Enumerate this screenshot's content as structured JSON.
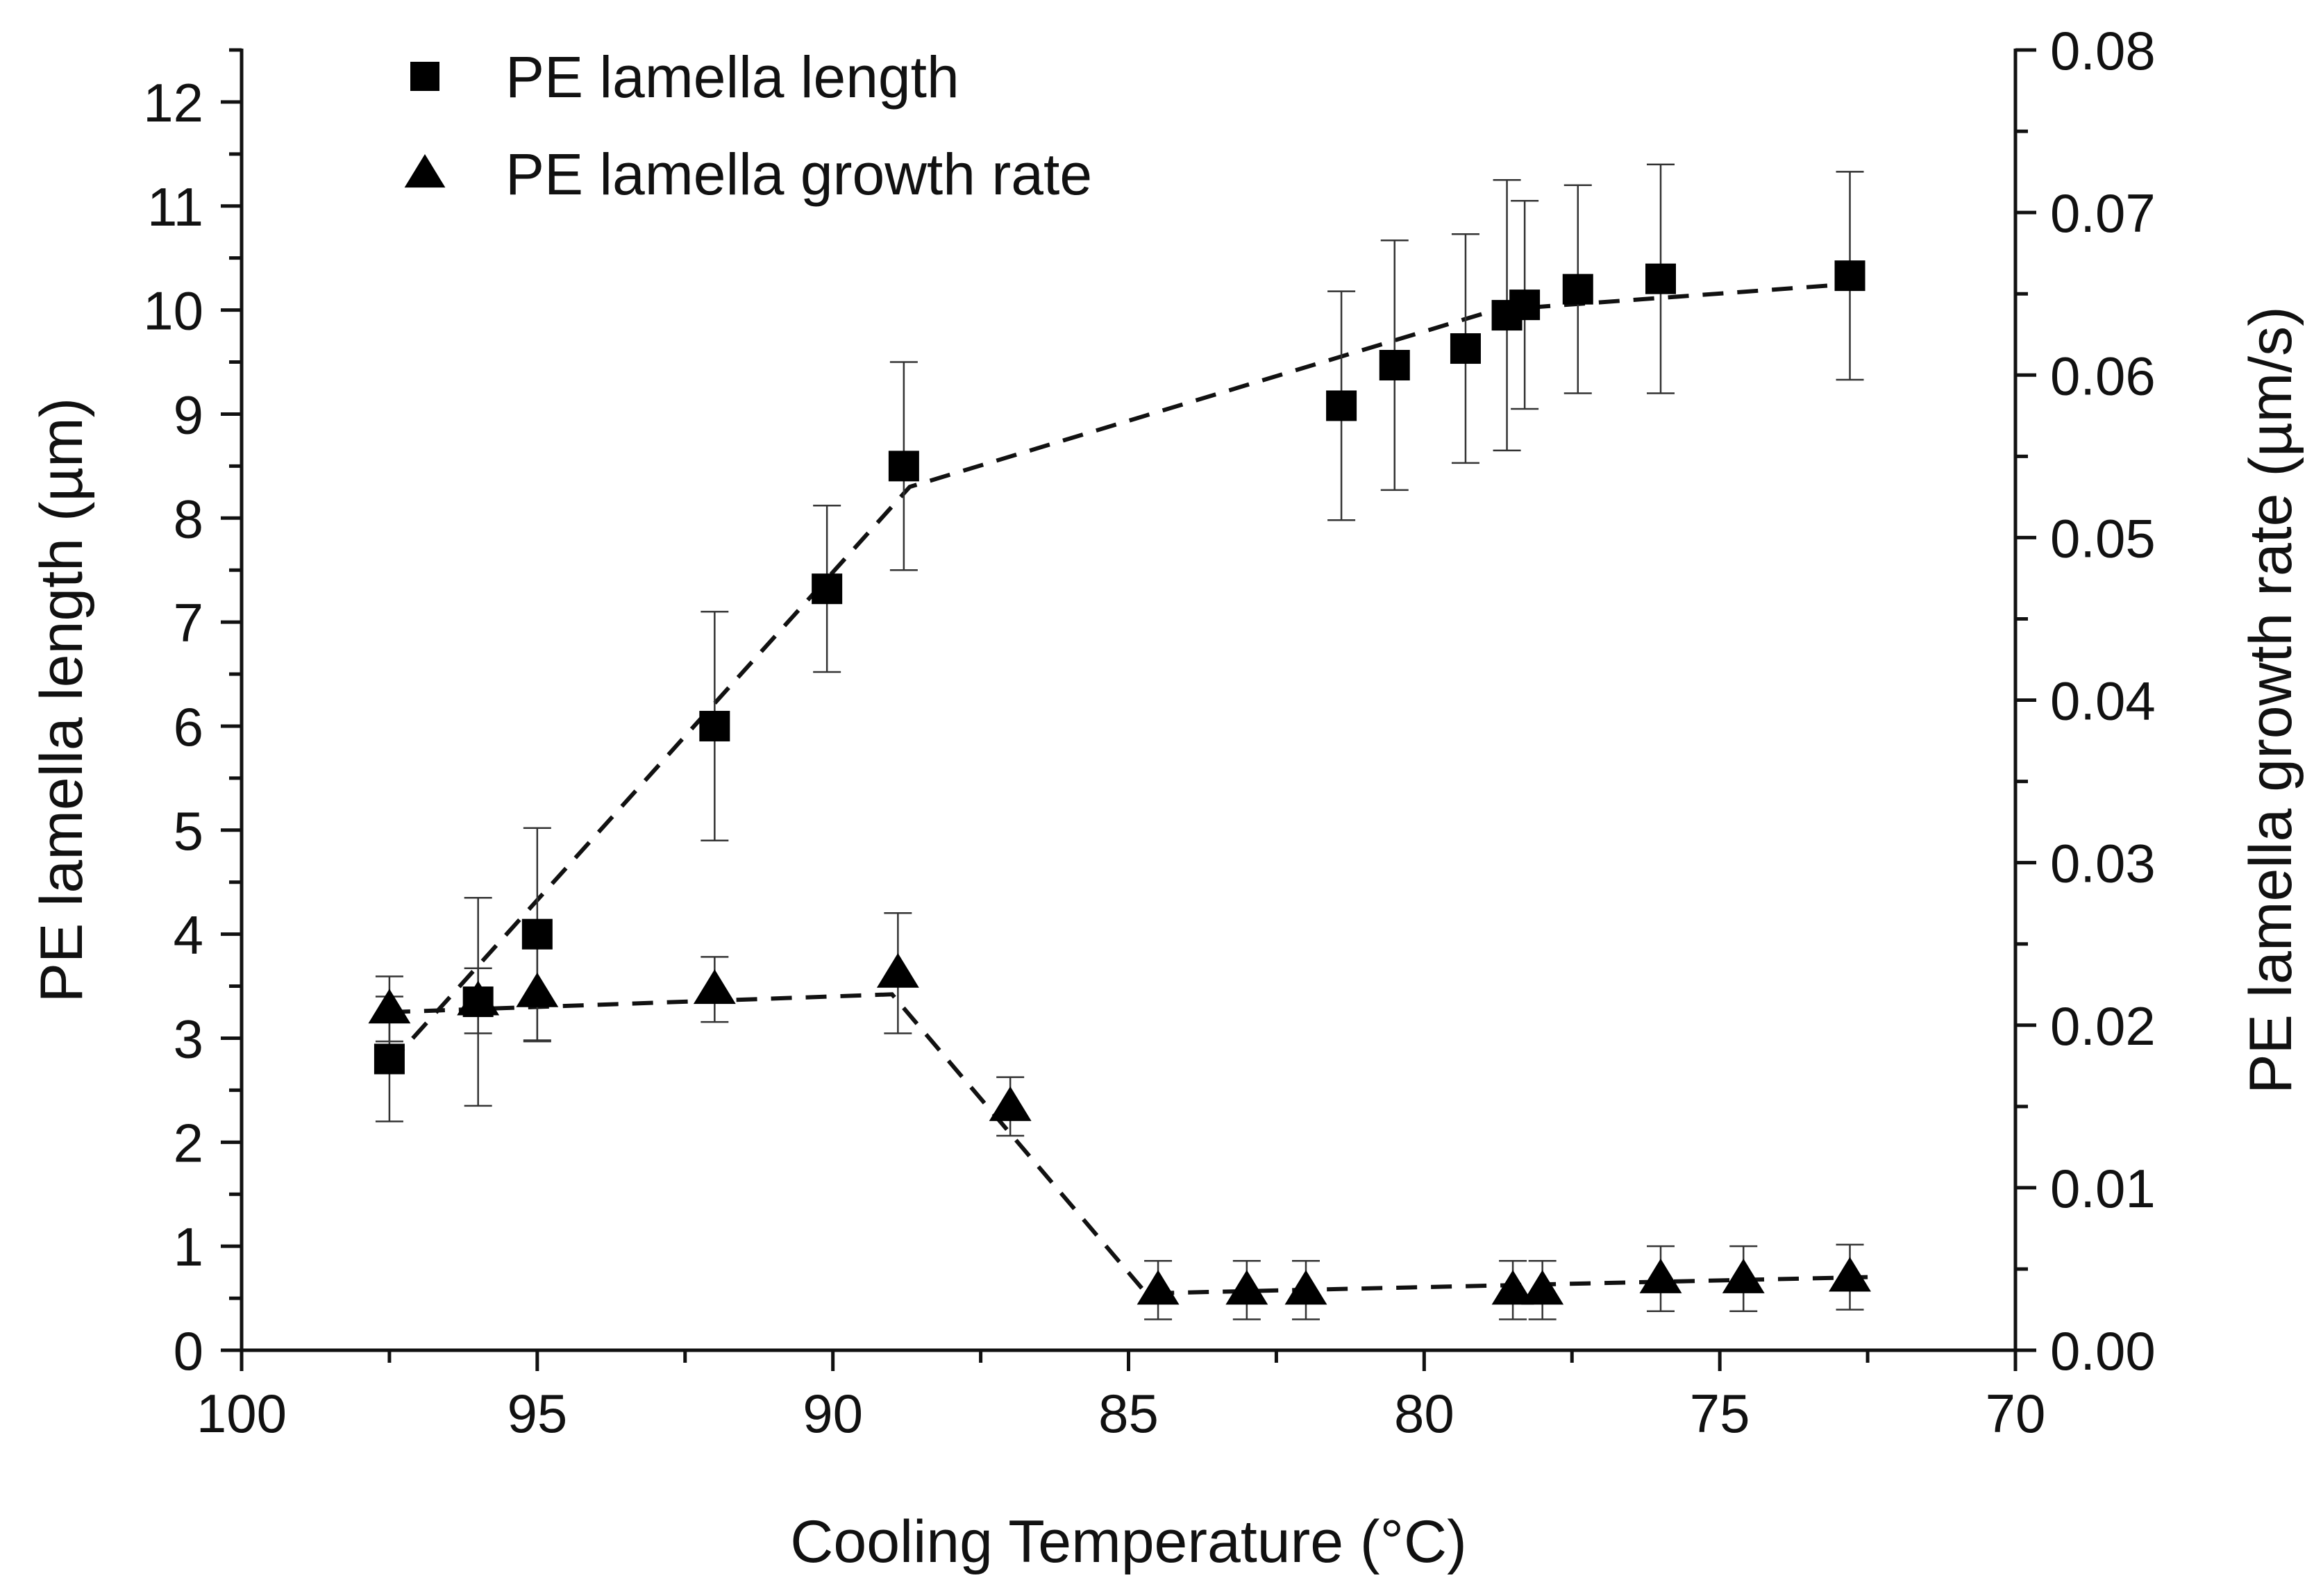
{
  "chart_data": {
    "type": "scatter",
    "xlabel": "Cooling Temperature (°C)",
    "ylabel": "PE lamella length (µm)",
    "y2label": "PE lamella growth rate (µm/s)",
    "xlim": [
      100,
      70
    ],
    "ylim": [
      0,
      12.5
    ],
    "y2lim": [
      0,
      0.08
    ],
    "xticks": [
      100,
      95,
      90,
      85,
      80,
      75,
      70
    ],
    "xtick_labels": [
      "100",
      "95",
      "90",
      "85",
      "80",
      "75",
      "70"
    ],
    "yticks": [
      0,
      1,
      2,
      3,
      4,
      5,
      6,
      7,
      8,
      9,
      10,
      11,
      12
    ],
    "ytick_labels": [
      "0",
      "1",
      "2",
      "3",
      "4",
      "5",
      "6",
      "7",
      "8",
      "9",
      "10",
      "11",
      "12"
    ],
    "y2ticks": [
      0,
      0.01,
      0.02,
      0.03,
      0.04,
      0.05,
      0.06,
      0.07,
      0.08
    ],
    "y2tick_labels": [
      "0.00",
      "0.01",
      "0.02",
      "0.03",
      "0.04",
      "0.05",
      "0.06",
      "0.07",
      "0.08"
    ],
    "legend_position": "top-left",
    "series": [
      {
        "name": "PE lamella length",
        "marker": "square",
        "axis": "left",
        "points": [
          {
            "x": 97.5,
            "y": 2.8,
            "err": 0.6
          },
          {
            "x": 96.0,
            "y": 3.35,
            "err": 1.0
          },
          {
            "x": 95.0,
            "y": 4.0,
            "err": 1.02
          },
          {
            "x": 92.0,
            "y": 6.0,
            "err": 1.1
          },
          {
            "x": 90.1,
            "y": 7.32,
            "err": 0.8
          },
          {
            "x": 88.8,
            "y": 8.5,
            "err": 1.0
          },
          {
            "x": 81.4,
            "y": 9.08,
            "err": 1.1
          },
          {
            "x": 80.5,
            "y": 9.47,
            "err": 1.2
          },
          {
            "x": 79.3,
            "y": 9.63,
            "err": 1.1
          },
          {
            "x": 78.6,
            "y": 9.95,
            "err": 1.3
          },
          {
            "x": 78.3,
            "y": 10.05,
            "err": 1.0
          },
          {
            "x": 77.4,
            "y": 10.2,
            "err": 1.0
          },
          {
            "x": 76.0,
            "y": 10.3,
            "err": 1.1
          },
          {
            "x": 72.8,
            "y": 10.33,
            "err": 1.0
          }
        ],
        "trend": [
          {
            "x": 97.5,
            "y": 2.75
          },
          {
            "x": 88.7,
            "y": 8.3
          },
          {
            "x": 78.8,
            "y": 10.0
          },
          {
            "x": 72.8,
            "y": 10.25
          }
        ]
      },
      {
        "name": "PE lamella growth rate",
        "marker": "triangle",
        "axis": "right",
        "points": [
          {
            "x": 97.5,
            "y": 0.021,
            "err": 0.002
          },
          {
            "x": 96.0,
            "y": 0.0215,
            "err": 0.002
          },
          {
            "x": 95.0,
            "y": 0.022,
            "err": 0.003
          },
          {
            "x": 92.0,
            "y": 0.0222,
            "err": 0.002
          },
          {
            "x": 88.9,
            "y": 0.0232,
            "err": 0.0037
          },
          {
            "x": 87.0,
            "y": 0.015,
            "err": 0.0018
          },
          {
            "x": 84.5,
            "y": 0.0037,
            "err": 0.0018
          },
          {
            "x": 83.0,
            "y": 0.0037,
            "err": 0.0018
          },
          {
            "x": 82.0,
            "y": 0.0037,
            "err": 0.0018
          },
          {
            "x": 78.5,
            "y": 0.0037,
            "err": 0.0018
          },
          {
            "x": 78.0,
            "y": 0.0037,
            "err": 0.0018
          },
          {
            "x": 76.0,
            "y": 0.0044,
            "err": 0.002
          },
          {
            "x": 74.6,
            "y": 0.0044,
            "err": 0.002
          },
          {
            "x": 72.8,
            "y": 0.0045,
            "err": 0.002
          }
        ],
        "trend": [
          {
            "x": 97.5,
            "y": 0.0208
          },
          {
            "x": 89.0,
            "y": 0.0219
          },
          {
            "x": 84.7,
            "y": 0.0035
          },
          {
            "x": 72.5,
            "y": 0.0045
          }
        ]
      }
    ]
  }
}
